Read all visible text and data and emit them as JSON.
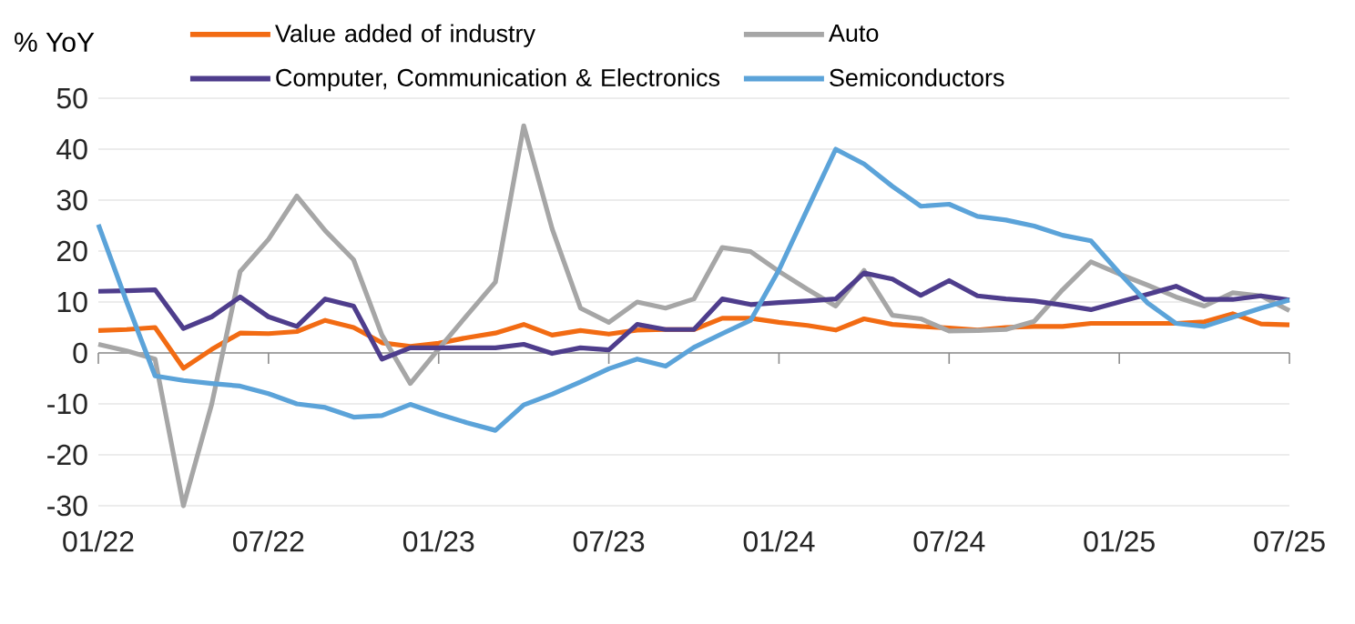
{
  "chart_data": {
    "type": "line",
    "ylabel": "% YoY",
    "x": [
      "2022-01",
      "2022-02",
      "2022-03",
      "2022-04",
      "2022-05",
      "2022-06",
      "2022-07",
      "2022-08",
      "2022-09",
      "2022-10",
      "2022-11",
      "2022-12",
      "2023-01",
      "2023-02",
      "2023-03",
      "2023-04",
      "2023-05",
      "2023-06",
      "2023-07",
      "2023-08",
      "2023-09",
      "2023-10",
      "2023-11",
      "2023-12",
      "2024-01",
      "2024-02",
      "2024-03",
      "2024-04",
      "2024-05",
      "2024-06",
      "2024-07",
      "2024-08",
      "2024-09",
      "2024-10",
      "2024-11",
      "2024-12",
      "2025-01",
      "2025-02",
      "2025-03",
      "2025-04",
      "2025-05",
      "2025-06",
      "2025-07"
    ],
    "series": [
      {
        "name": "Value added of industry",
        "color": "#f26b13",
        "values": [
          4.4,
          4.6,
          5,
          -3,
          0.7,
          3.9,
          3.8,
          4.2,
          6.4,
          5,
          2,
          1.3,
          1.9,
          3,
          3.9,
          5.6,
          3.5,
          4.4,
          3.7,
          4.5,
          4.6,
          4.6,
          6.8,
          6.8,
          6,
          5.4,
          4.5,
          6.7,
          5.6,
          5.2,
          4.9,
          4.5,
          5,
          5.2,
          5.2,
          5.8,
          5.8,
          5.8,
          5.8,
          6.1,
          7.7,
          5.7,
          5.5
        ]
      },
      {
        "name": "Auto",
        "color": "#a6a6a6",
        "values": [
          1.7,
          0.4,
          -1.2,
          -30,
          -10,
          16,
          22.3,
          30.8,
          24,
          18.3,
          3.5,
          -6,
          0.8,
          7.4,
          13.9,
          44.6,
          24.4,
          8.8,
          6,
          10,
          8.8,
          10.6,
          20.7,
          19.9,
          16,
          12.5,
          9.2,
          16.2,
          7.4,
          6.7,
          4.3,
          4.4,
          4.6,
          6.2,
          12.4,
          17.9,
          15.5,
          13.3,
          11,
          9.2,
          11.8,
          11.2,
          8.3
        ]
      },
      {
        "name": "Computer, Communication & Electronics",
        "color": "#4e3d8c",
        "values": [
          12.1,
          12.2,
          12.4,
          4.8,
          7.1,
          11,
          7.1,
          5.2,
          10.6,
          9.2,
          -1.2,
          1,
          1,
          1,
          1,
          1.7,
          -0.1,
          1,
          0.6,
          5.6,
          4.6,
          4.6,
          10.6,
          9.5,
          9.9,
          10.2,
          10.6,
          15.7,
          14.5,
          11.3,
          14.2,
          11.2,
          10.6,
          10.2,
          9.4,
          8.5,
          10,
          11.5,
          13.1,
          10.5,
          10.5,
          11.2,
          10.4
        ]
      },
      {
        "name": "Semiconductors",
        "color": "#5ba3d9",
        "values": [
          25.2,
          10,
          -4.5,
          -5.4,
          -6,
          -6.5,
          -8,
          -10,
          -10.7,
          -12.6,
          -12.3,
          -10.1,
          -12,
          -13.7,
          -15.2,
          -10.2,
          -8.1,
          -5.7,
          -3.1,
          -1.2,
          -2.6,
          1.1,
          3.8,
          6.4,
          16.3,
          28.2,
          40,
          37.1,
          32.7,
          28.8,
          29.2,
          26.8,
          26.1,
          24.9,
          23.1,
          22,
          15.7,
          9.8,
          5.8,
          5.2,
          7,
          8.8,
          10.4
        ]
      }
    ],
    "xlim": [
      "2022-01",
      "2025-07"
    ],
    "xticks": [
      {
        "value": "2022-01",
        "label": "01/22"
      },
      {
        "value": "2022-07",
        "label": "07/22"
      },
      {
        "value": "2023-01",
        "label": "01/23"
      },
      {
        "value": "2023-07",
        "label": "07/23"
      },
      {
        "value": "2024-01",
        "label": "01/24"
      },
      {
        "value": "2024-07",
        "label": "07/24"
      },
      {
        "value": "2025-01",
        "label": "01/25"
      },
      {
        "value": "2025-07",
        "label": "07/25"
      }
    ],
    "ylim": [
      -30,
      50
    ],
    "yticks": [
      -30,
      -20,
      -10,
      0,
      10,
      20,
      30,
      40,
      50
    ],
    "grid": "y",
    "legend": "top",
    "marker": "none",
    "line_style": "solid"
  }
}
